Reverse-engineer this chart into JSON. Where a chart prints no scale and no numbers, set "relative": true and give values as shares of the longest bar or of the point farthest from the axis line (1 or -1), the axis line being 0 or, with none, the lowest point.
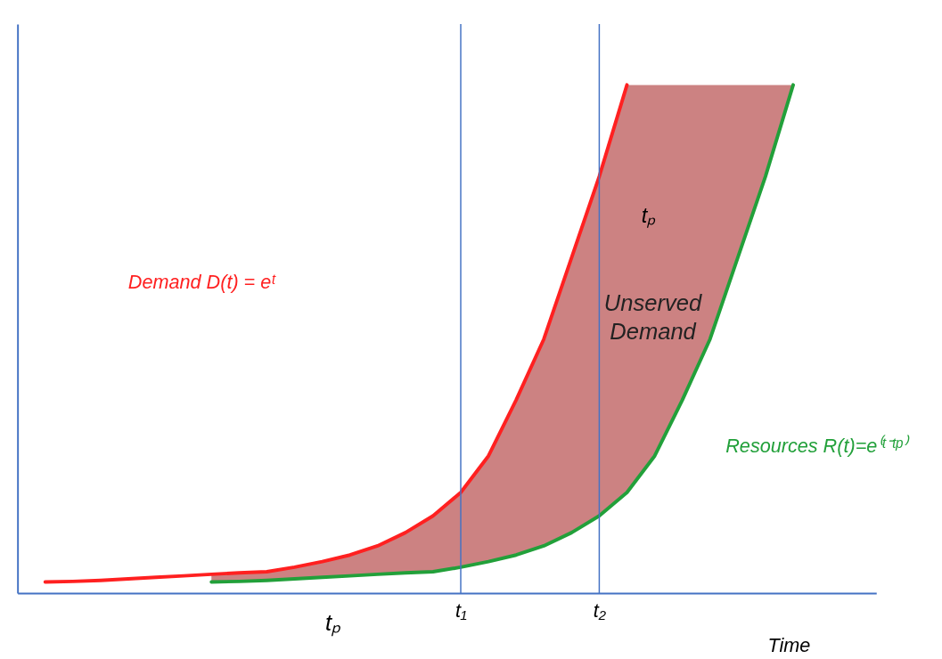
{
  "chart_data": {
    "type": "line",
    "relative": true,
    "xlabel": "Time",
    "tick_labels": "x",
    "grid": false,
    "marker": "none",
    "line_style": "solid",
    "categories": [
      null,
      null,
      null,
      null,
      null,
      null,
      null,
      null,
      null,
      null,
      null,
      null,
      null,
      null,
      null,
      null,
      "t₁",
      null,
      null,
      null,
      null,
      "t₂",
      null,
      null,
      null,
      null,
      null,
      null,
      null,
      null,
      null,
      null
    ],
    "series": [
      {
        "name": "Demand D(t) = eᵗ",
        "color": "#ff2020",
        "values": [
          null,
          0.022,
          0.023,
          0.025,
          0.028,
          0.031,
          0.034,
          0.037,
          0.04,
          0.042,
          0.051,
          0.062,
          0.075,
          0.093,
          0.119,
          0.152,
          0.198,
          0.27,
          0.38,
          0.5,
          0.66,
          0.82,
          1.0,
          null,
          null,
          null,
          null,
          null,
          null,
          null,
          null,
          null
        ]
      },
      {
        "name": "Resources R(t)=e⁽ᵗ⁻ᵗᵖ⁾",
        "color": "#22a03a",
        "values": [
          null,
          null,
          null,
          null,
          null,
          null,
          null,
          0.022,
          0.023,
          0.025,
          0.028,
          0.031,
          0.034,
          0.037,
          0.04,
          0.042,
          0.051,
          0.062,
          0.075,
          0.093,
          0.119,
          0.152,
          0.198,
          0.27,
          0.38,
          0.5,
          0.66,
          0.82,
          1.0,
          null,
          null,
          null
        ],
        "lower": [
          null,
          null,
          null,
          null,
          null,
          null,
          null,
          0.022,
          0.023,
          0.025,
          0.028,
          0.031,
          0.034,
          0.037,
          0.04,
          0.042,
          0.051,
          0.062,
          0.075,
          0.093,
          0.119,
          0.152,
          0.198,
          0.27,
          0.38,
          0.5,
          0.66,
          0.82,
          1.0,
          null,
          null,
          null
        ],
        "upper": [
          null,
          null,
          null,
          null,
          null,
          null,
          null,
          0.037,
          0.04,
          0.042,
          0.051,
          0.062,
          0.075,
          0.093,
          0.119,
          0.152,
          0.198,
          0.27,
          0.38,
          0.5,
          0.66,
          0.82,
          1.0,
          1.0,
          1.0,
          1.0,
          1.0,
          1.0,
          1.0,
          null,
          null,
          null
        ]
      }
    ],
    "ref_lines": [
      {
        "axis": "x",
        "value": "t₁",
        "label": null,
        "color": "#4472c4"
      },
      {
        "axis": "x",
        "value": "t₂",
        "label": null,
        "color": "#4472c4"
      }
    ],
    "annotations": [
      "tₚ",
      "tₚ",
      "Unserved Demand"
    ]
  }
}
